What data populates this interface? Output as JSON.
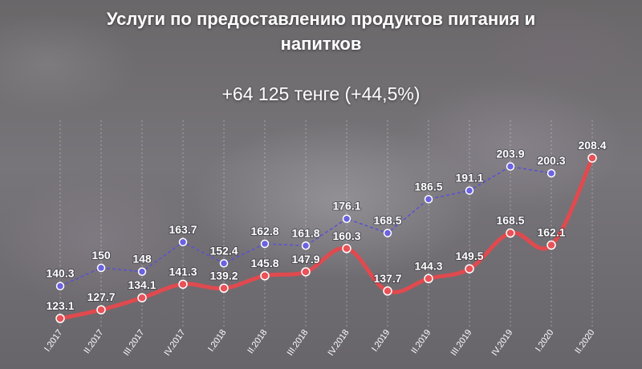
{
  "title_line1": "Услуги по предоставлению продуктов питания и",
  "title_line2": "напитков",
  "subtitle": "+64 125 тенге (+44,5%)",
  "colors": {
    "series_upper": "#5a4fd6",
    "series_lower": "#e04a4f",
    "label": "#ffffff"
  },
  "chart_data": {
    "type": "line",
    "categories": [
      "I.2017",
      "II.2017",
      "III.2017",
      "IV.2017",
      "I.2018",
      "II.2018",
      "III.2018",
      "IV.2018",
      "I.2019",
      "II.2019",
      "III.2019",
      "IV.2019",
      "I.2020",
      "II.2020"
    ],
    "series": [
      {
        "style": "dashed",
        "color": "#5a4fd6",
        "values": [
          140.3,
          150,
          148,
          163.7,
          152.4,
          162.8,
          161.8,
          176.1,
          168.5,
          186.5,
          191.1,
          203.9,
          200.3,
          null
        ],
        "labels": [
          "140.3",
          "150",
          "148",
          "163.7",
          "152.4",
          "162.8",
          "161.8",
          "176.1",
          "168.5",
          "186.5",
          "191.1",
          "203.9",
          "200.3",
          ""
        ]
      },
      {
        "style": "solid",
        "color": "#e04a4f",
        "values": [
          123.1,
          127.7,
          134.1,
          141.3,
          139.2,
          145.8,
          147.9,
          160.3,
          137.7,
          144.3,
          149.5,
          168.5,
          162.1,
          208.4
        ],
        "labels": [
          "123.1",
          "127.7",
          "134.1",
          "141.3",
          "139.2",
          "145.8",
          "147.9",
          "160.3",
          "137.7",
          "144.3",
          "149.5",
          "168.5",
          "162.1",
          "208.4"
        ]
      }
    ],
    "grid": "vertical dashed lines",
    "legend": "none"
  }
}
